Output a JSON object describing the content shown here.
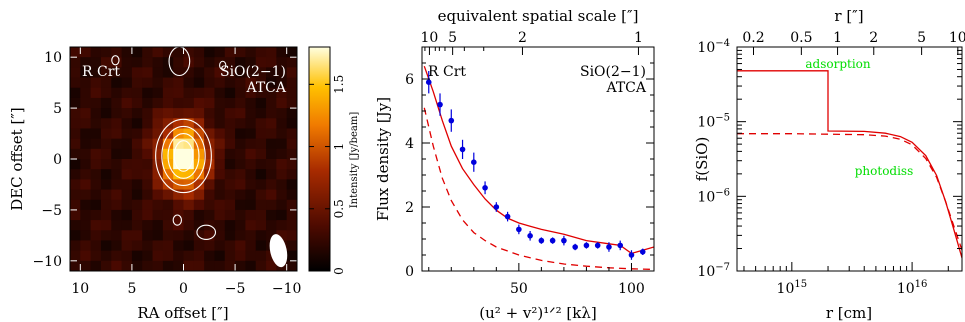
{
  "chart_data": [
    {
      "type": "heatmap",
      "xlabel": "RA offset [″]",
      "ylabel": "DEC offset [″]",
      "xlim": [
        11,
        -11
      ],
      "ylim": [
        -11,
        11
      ],
      "xticks": [
        10,
        5,
        0,
        -5,
        -10
      ],
      "yticks": [
        10,
        5,
        0,
        -5,
        -10
      ],
      "xtick_labels": [
        "10",
        "5",
        "0",
        "−5",
        "−10"
      ],
      "ytick_labels": [
        "10",
        "5",
        "0",
        "−5",
        "−10"
      ],
      "annotation_left": "R Crt",
      "annotation_right": [
        "SiO(2−1)",
        "ATCA"
      ],
      "colorbar": {
        "label": "Intensity [Jy/beam]",
        "range": [
          0,
          1.8
        ],
        "ticks": [
          0,
          0.5,
          1,
          1.5
        ],
        "tick_labels": [
          "0",
          "0.5",
          "1",
          "1.5"
        ]
      },
      "source_peak": {
        "ra": 0,
        "dec": 0.2,
        "peak": 1.8,
        "sigma_ra": 1.6,
        "sigma_dec": 2.3
      },
      "contours": [
        {
          "ra": 0,
          "dec": 0.3,
          "rx": 2.7,
          "ry": 3.6
        },
        {
          "ra": 0,
          "dec": 0.3,
          "rx": 2.1,
          "ry": 2.9
        },
        {
          "ra": 0,
          "dec": 0.3,
          "rx": 1.5,
          "ry": 2.2
        },
        {
          "ra": 0,
          "dec": 0.3,
          "rx": 0.9,
          "ry": 1.5
        },
        {
          "ra": 0.4,
          "dec": 9.6,
          "rx": 1.0,
          "ry": 1.4
        },
        {
          "ra": 6.6,
          "dec": 9.7,
          "rx": 0.35,
          "ry": 0.45
        },
        {
          "ra": -3.8,
          "dec": 9.2,
          "rx": 0.3,
          "ry": 0.4
        },
        {
          "ra": -2.2,
          "dec": -7.2,
          "rx": 0.9,
          "ry": 0.7
        },
        {
          "ra": 0.6,
          "dec": -6.0,
          "rx": 0.4,
          "ry": 0.5
        }
      ],
      "beam": {
        "ra": -9.2,
        "dec": -9.0,
        "major": 3.3,
        "minor": 1.6
      }
    },
    {
      "type": "scatter",
      "xlabel": "(u² + v²)¹ᐟ² [kλ]",
      "ylabel": "Flux density [Jy]",
      "top_label": "equivalent spatial scale [″]",
      "xlim": [
        7,
        110
      ],
      "ylim": [
        0,
        7
      ],
      "xticks": [
        50,
        100
      ],
      "yticks": [
        0,
        2,
        4,
        6
      ],
      "top_ticks": [
        {
          "x": 10.3,
          "label": "10"
        },
        {
          "x": 20.6,
          "label": "5"
        },
        {
          "x": 51.6,
          "label": "2"
        },
        {
          "x": 103.1,
          "label": "1"
        }
      ],
      "annotation_left": "R Crt",
      "annotation_right": [
        "SiO(2−1)",
        "ATCA"
      ],
      "points": {
        "x": [
          10,
          15,
          20,
          25,
          30,
          35,
          40,
          45,
          50,
          55,
          60,
          65,
          70,
          75,
          80,
          85,
          90,
          95,
          100,
          105
        ],
        "y": [
          5.9,
          5.2,
          4.7,
          3.8,
          3.4,
          2.6,
          2.0,
          1.7,
          1.3,
          1.1,
          0.95,
          0.95,
          0.95,
          0.75,
          0.8,
          0.8,
          0.75,
          0.8,
          0.5,
          0.6
        ],
        "err": [
          0.35,
          0.35,
          0.35,
          0.3,
          0.3,
          0.2,
          0.15,
          0.15,
          0.15,
          0.15,
          0.1,
          0.1,
          0.15,
          0.1,
          0.1,
          0.1,
          0.15,
          0.15,
          0.15,
          0.1
        ]
      },
      "series": [
        {
          "style": "solid",
          "x": [
            8,
            12,
            16,
            20,
            25,
            30,
            35,
            40,
            45,
            50,
            55,
            60,
            70,
            80,
            90,
            95,
            100,
            105,
            110
          ],
          "y": [
            6.4,
            5.6,
            4.7,
            3.9,
            3.2,
            2.7,
            2.25,
            1.9,
            1.65,
            1.5,
            1.4,
            1.3,
            1.15,
            0.95,
            0.85,
            0.8,
            0.55,
            0.65,
            0.75
          ]
        },
        {
          "style": "dashed",
          "x": [
            8,
            12,
            16,
            20,
            25,
            30,
            35,
            40,
            50,
            60,
            70,
            80,
            90,
            100,
            110
          ],
          "y": [
            5.1,
            3.9,
            2.9,
            2.2,
            1.6,
            1.2,
            0.95,
            0.75,
            0.5,
            0.33,
            0.22,
            0.15,
            0.1,
            0.07,
            0.05
          ]
        }
      ],
      "color": "#e00000",
      "point_color": "#0000dd"
    },
    {
      "type": "line",
      "xlabel": "r [cm]",
      "ylabel": "f(SiO)",
      "top_label": "r [″]",
      "xscale": "log",
      "yscale": "log",
      "xlim": [
        350000000000000.0,
        2.6e+16
      ],
      "ylim": [
        1e-07,
        0.0001
      ],
      "xticks": [
        {
          "v": 1000000000000000.0,
          "base": "10",
          "exp": "15"
        },
        {
          "v": 1e+16,
          "base": "10",
          "exp": "16"
        }
      ],
      "yticks": [
        {
          "v": 1e-07,
          "base": "10",
          "exp": "−7"
        },
        {
          "v": 1e-06,
          "base": "10",
          "exp": "−6"
        },
        {
          "v": 1e-05,
          "base": "10",
          "exp": "−5"
        },
        {
          "v": 0.0001,
          "base": "10",
          "exp": "−4"
        }
      ],
      "top_ticks": [
        {
          "v": 480000000000000.0,
          "label": "0.2"
        },
        {
          "v": 1200000000000000.0,
          "label": "0.5"
        },
        {
          "v": 2400000000000000.0,
          "label": "1"
        },
        {
          "v": 4800000000000000.0,
          "label": "2"
        },
        {
          "v": 1.2e+16,
          "label": "5"
        },
        {
          "v": 2.4e+16,
          "label": "10"
        }
      ],
      "labels": [
        "adsorption",
        "photodiss"
      ],
      "label_color": "#00dd00",
      "color": "#e00000",
      "series": [
        {
          "style": "solid",
          "x": [
            350000000000000.0,
            2000000000000000.0,
            2000000000000000.0,
            4000000000000000.0,
            6000000000000000.0,
            8000000000000000.0,
            1e+16,
            1.3e+16,
            1.6e+16,
            1.9e+16,
            2.2e+16,
            2.6e+16
          ],
          "y": [
            4.8e-05,
            4.8e-05,
            7.5e-06,
            7.4e-06,
            7e-06,
            6.3e-06,
            5.3e-06,
            3.5e-06,
            1.9e-06,
            8.5e-07,
            3.8e-07,
            1.5e-07
          ]
        },
        {
          "style": "dashed",
          "x": [
            350000000000000.0,
            1000000000000000.0,
            2000000000000000.0,
            4000000000000000.0,
            6000000000000000.0,
            8000000000000000.0,
            1e+16,
            1.3e+16,
            1.6e+16,
            1.9e+16,
            2.2e+16,
            2.6e+16
          ],
          "y": [
            6.9e-06,
            6.9e-06,
            6.8e-06,
            6.7e-06,
            6.4e-06,
            5.8e-06,
            4.9e-06,
            3.2e-06,
            1.8e-06,
            8.5e-07,
            4.2e-07,
            1.9e-07
          ]
        }
      ]
    }
  ]
}
